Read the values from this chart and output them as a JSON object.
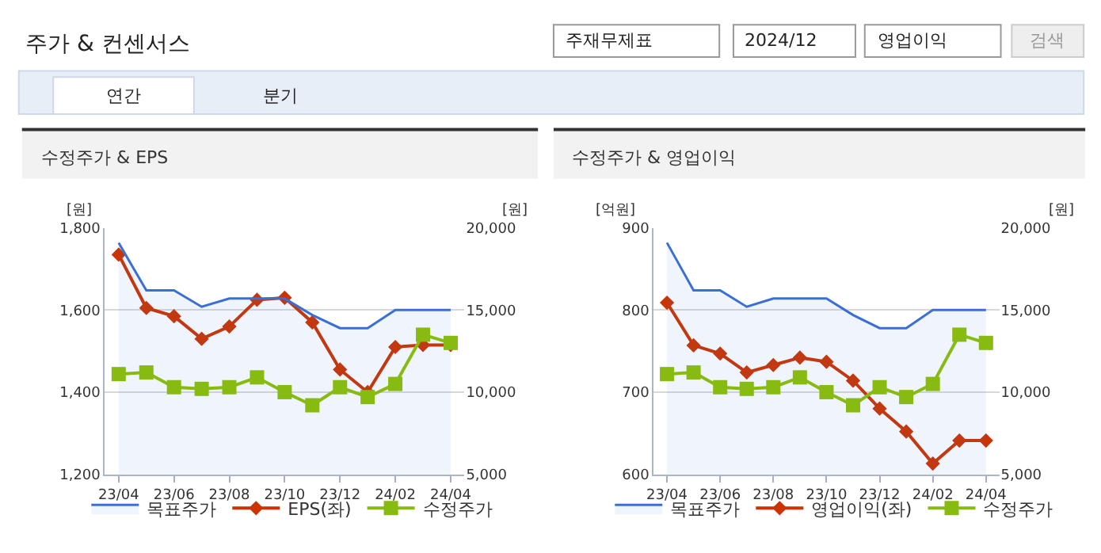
{
  "chart_data": [
    {
      "type": "other",
      "title": "주가 & 컨센서스",
      "annotations": [
        "주재무제표",
        "2024/12",
        "영업이익",
        "검색",
        "연간",
        "분기"
      ]
    },
    {
      "type": "line",
      "title": "수정주가 & EPS",
      "ylabel": "[원]",
      "y2label": "[원]",
      "categories": [
        "23/04",
        null,
        "23/06",
        null,
        "23/08",
        null,
        "23/10",
        null,
        "23/12",
        null,
        "24/02",
        null,
        "24/04"
      ],
      "series": [
        {
          "name": "목표주가",
          "type": "area",
          "axis": "y2",
          "color": "#3a6fd8",
          "marker": "none",
          "values": [
            19100,
            16200,
            16200,
            15200,
            15700,
            15700,
            15700,
            14700,
            13900,
            13900,
            15000,
            15000,
            15000
          ]
        },
        {
          "name": "EPS(좌)",
          "color": "#cc3300",
          "marker": "diamond",
          "values": [
            1735,
            1605,
            1585,
            1530,
            1560,
            1625,
            1630,
            1570,
            1455,
            1400,
            1510,
            1515,
            1515
          ]
        },
        {
          "name": "수정주가",
          "axis": "y2",
          "color": "#88bb11",
          "marker": "square",
          "values": [
            11100,
            11200,
            10300,
            10200,
            10300,
            10900,
            10000,
            9200,
            10300,
            9700,
            10500,
            13500,
            13000
          ]
        }
      ],
      "ylim": [
        1200,
        1800
      ],
      "yticks": [
        {
          "value": 1200,
          "label": "1,200"
        },
        {
          "value": 1400,
          "label": "1,400"
        },
        {
          "value": 1600,
          "label": "1,600"
        },
        {
          "value": 1800,
          "label": "1,800"
        }
      ],
      "y2lim": [
        5000,
        20000
      ],
      "y2ticks": [
        {
          "value": 5000,
          "label": "5,000"
        },
        {
          "value": 10000,
          "label": "10,000"
        },
        {
          "value": 15000,
          "label": "15,000"
        },
        {
          "value": 20000,
          "label": "20,000"
        }
      ],
      "grid": "y",
      "legend": "bottom"
    },
    {
      "type": "line",
      "title": "수정주가 & 영업이익",
      "ylabel": "[억원]",
      "y2label": "[원]",
      "categories": [
        "23/04",
        null,
        "23/06",
        null,
        "23/08",
        null,
        "23/10",
        null,
        "23/12",
        null,
        "24/02",
        null,
        "24/04"
      ],
      "series": [
        {
          "name": "목표주가",
          "type": "area",
          "axis": "y2",
          "color": "#3a6fd8",
          "marker": "none",
          "values": [
            19100,
            16200,
            16200,
            15200,
            15700,
            15700,
            15700,
            14700,
            13900,
            13900,
            15000,
            15000,
            15000
          ]
        },
        {
          "name": "영업이익(좌)",
          "color": "#cc3300",
          "marker": "diamond",
          "values": [
            809,
            757,
            747,
            724,
            733,
            742,
            737,
            714,
            680,
            652,
            613,
            641,
            641
          ]
        },
        {
          "name": "수정주가",
          "axis": "y2",
          "color": "#88bb11",
          "marker": "square",
          "values": [
            11100,
            11200,
            10300,
            10200,
            10300,
            10900,
            10000,
            9200,
            10300,
            9700,
            10500,
            13500,
            13000
          ]
        }
      ],
      "ylim": [
        600,
        900
      ],
      "yticks": [
        600,
        700,
        800,
        900
      ],
      "y2lim": [
        5000,
        20000
      ],
      "y2ticks": [
        {
          "value": 5000,
          "label": "5,000"
        },
        {
          "value": 10000,
          "label": "10,000"
        },
        {
          "value": 15000,
          "label": "15,000"
        },
        {
          "value": 20000,
          "label": "20,000"
        }
      ],
      "grid": "y",
      "legend": "bottom"
    }
  ]
}
